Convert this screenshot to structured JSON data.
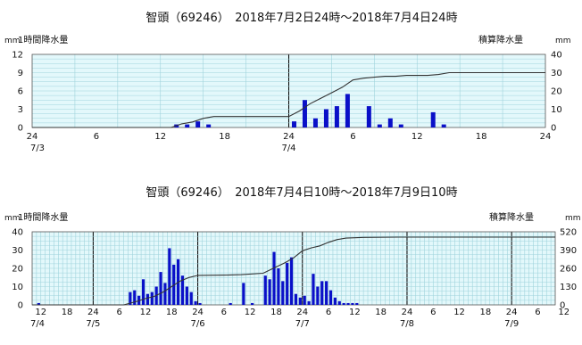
{
  "chart_data": [
    {
      "type": "bar",
      "title": "智頭（69246）　2018年7月2日24時～2018年7月4日24時",
      "left_axis": {
        "unit": "mm",
        "label": "1時間降水量",
        "ticks": [
          0,
          3,
          6,
          9,
          12
        ],
        "ylim": [
          0,
          12
        ]
      },
      "right_axis": {
        "unit": "mm",
        "label": "積算降水量",
        "ticks": [
          0,
          10,
          20,
          30,
          40
        ],
        "ylim": [
          0,
          40
        ]
      },
      "x_axis": {
        "hour_ticks": [
          "24",
          "6",
          "12",
          "18",
          "24",
          "6",
          "12",
          "18",
          "24"
        ],
        "date_labels": [
          "7/3",
          "7/4"
        ]
      },
      "series": [
        {
          "name": "1時間降水量",
          "type": "bar",
          "x": [
            14,
            15,
            16,
            17,
            25,
            26,
            27,
            28,
            29,
            30,
            32,
            33,
            34,
            35,
            38,
            39
          ],
          "values": [
            0.5,
            0.5,
            1.0,
            0.5,
            1.0,
            4.5,
            1.5,
            3.0,
            3.5,
            5.5,
            3.5,
            0.5,
            1.5,
            0.5,
            2.5,
            0.5
          ]
        },
        {
          "name": "積算降水量",
          "type": "line",
          "x": [
            0,
            13,
            14,
            15,
            16,
            17,
            24,
            25,
            26,
            27,
            28,
            29,
            30,
            31,
            32,
            33,
            34,
            35,
            36,
            37,
            38,
            39,
            40,
            48
          ],
          "values": [
            0,
            0,
            2,
            3,
            5,
            6,
            6,
            9,
            13,
            16,
            19,
            22,
            26,
            27,
            27.5,
            28,
            28,
            28.5,
            28.5,
            28.5,
            29,
            30,
            30,
            30
          ]
        }
      ]
    },
    {
      "type": "bar",
      "title": "智頭（69246）　2018年7月4日10時～2018年7月9日10時",
      "left_axis": {
        "unit": "mm",
        "label": "1時間降水量",
        "ticks": [
          0,
          10,
          20,
          30,
          40
        ],
        "ylim": [
          0,
          40
        ]
      },
      "right_axis": {
        "unit": "mm",
        "label": "積算降水量",
        "ticks": [
          0,
          130,
          260,
          390,
          520
        ],
        "ylim": [
          0,
          520
        ]
      },
      "x_axis": {
        "hour_ticks": [
          "12",
          "18",
          "24",
          "6",
          "12",
          "18",
          "24",
          "6",
          "12",
          "18",
          "24",
          "6",
          "12",
          "18",
          "24",
          "6",
          "12",
          "18",
          "24",
          "6",
          "12",
          "18",
          "24",
          "6"
        ],
        "date_labels": [
          "7/4",
          "7/5",
          "7/6",
          "7/7",
          "7/8",
          "7/9"
        ]
      },
      "series": [
        {
          "name": "1時間降水量",
          "type": "bar",
          "x": [
            2,
            23,
            24,
            25,
            26,
            27,
            28,
            29,
            30,
            31,
            32,
            33,
            34,
            35,
            36,
            37,
            38,
            39,
            46,
            49,
            51,
            54,
            55,
            56,
            57,
            58,
            59,
            60,
            61,
            62,
            63,
            64,
            65,
            66,
            67,
            68,
            69,
            70,
            71,
            72,
            73,
            74,
            75
          ],
          "values": [
            1,
            7,
            8,
            5,
            14,
            6,
            7,
            10,
            18,
            12,
            31,
            22,
            25,
            16,
            10,
            7,
            2,
            1,
            1,
            12,
            1,
            16,
            14,
            29,
            20,
            13,
            23,
            26,
            6,
            4,
            5,
            2,
            17,
            10,
            13,
            13,
            8,
            4,
            2,
            1,
            1,
            1,
            1
          ]
        },
        {
          "name": "積算降水量",
          "type": "line",
          "x": [
            0,
            21,
            24,
            26,
            28,
            30,
            32,
            34,
            36,
            38,
            44,
            48,
            53,
            56,
            58,
            60,
            62,
            64,
            66,
            68,
            70,
            72,
            76,
            84,
            120
          ],
          "values": [
            0,
            0,
            25,
            45,
            60,
            90,
            130,
            170,
            195,
            210,
            212,
            215,
            225,
            270,
            300,
            335,
            385,
            405,
            420,
            445,
            465,
            475,
            480,
            482,
            482
          ]
        }
      ]
    }
  ],
  "colors": {
    "plot_bg": "#e3f8fb",
    "grid": "#9fd3dc",
    "bar": "#0a10c8",
    "line": "#333333",
    "divider": "#000000"
  }
}
